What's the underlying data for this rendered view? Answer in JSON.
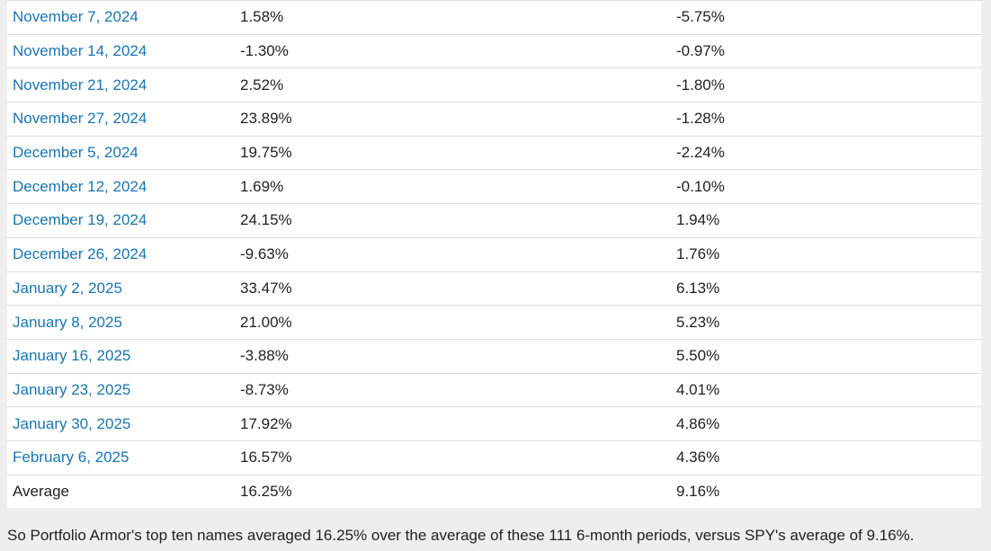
{
  "table": {
    "rows": [
      [
        "November 7, 2024",
        "1.58%",
        "-5.75%"
      ],
      [
        "November 14, 2024",
        "-1.30%",
        "-0.97%"
      ],
      [
        "November 21, 2024",
        "2.52%",
        "-1.80%"
      ],
      [
        "November 27, 2024",
        "23.89%",
        "-1.28%"
      ],
      [
        "December 5, 2024",
        "19.75%",
        "-2.24%"
      ],
      [
        "December 12, 2024",
        "1.69%",
        "-0.10%"
      ],
      [
        "December 19, 2024",
        "24.15%",
        "1.94%"
      ],
      [
        "December 26, 2024",
        "-9.63%",
        "1.76%"
      ],
      [
        "January 2, 2025",
        "33.47%",
        "6.13%"
      ],
      [
        "January 8, 2025",
        "21.00%",
        "5.23%"
      ],
      [
        "January 16, 2025",
        "-3.88%",
        "5.50%"
      ],
      [
        "January 23, 2025",
        "-8.73%",
        "4.01%"
      ],
      [
        "January 30, 2025",
        "17.92%",
        "4.86%"
      ],
      [
        "February 6, 2025",
        "16.57%",
        "4.36%"
      ]
    ],
    "average": [
      "Average",
      "16.25%",
      "9.16%"
    ]
  },
  "footer": {
    "text": "So Portfolio Armor's top ten names averaged 16.25% over the average of these 111 6-month periods, versus SPY's average of 9.16%."
  }
}
